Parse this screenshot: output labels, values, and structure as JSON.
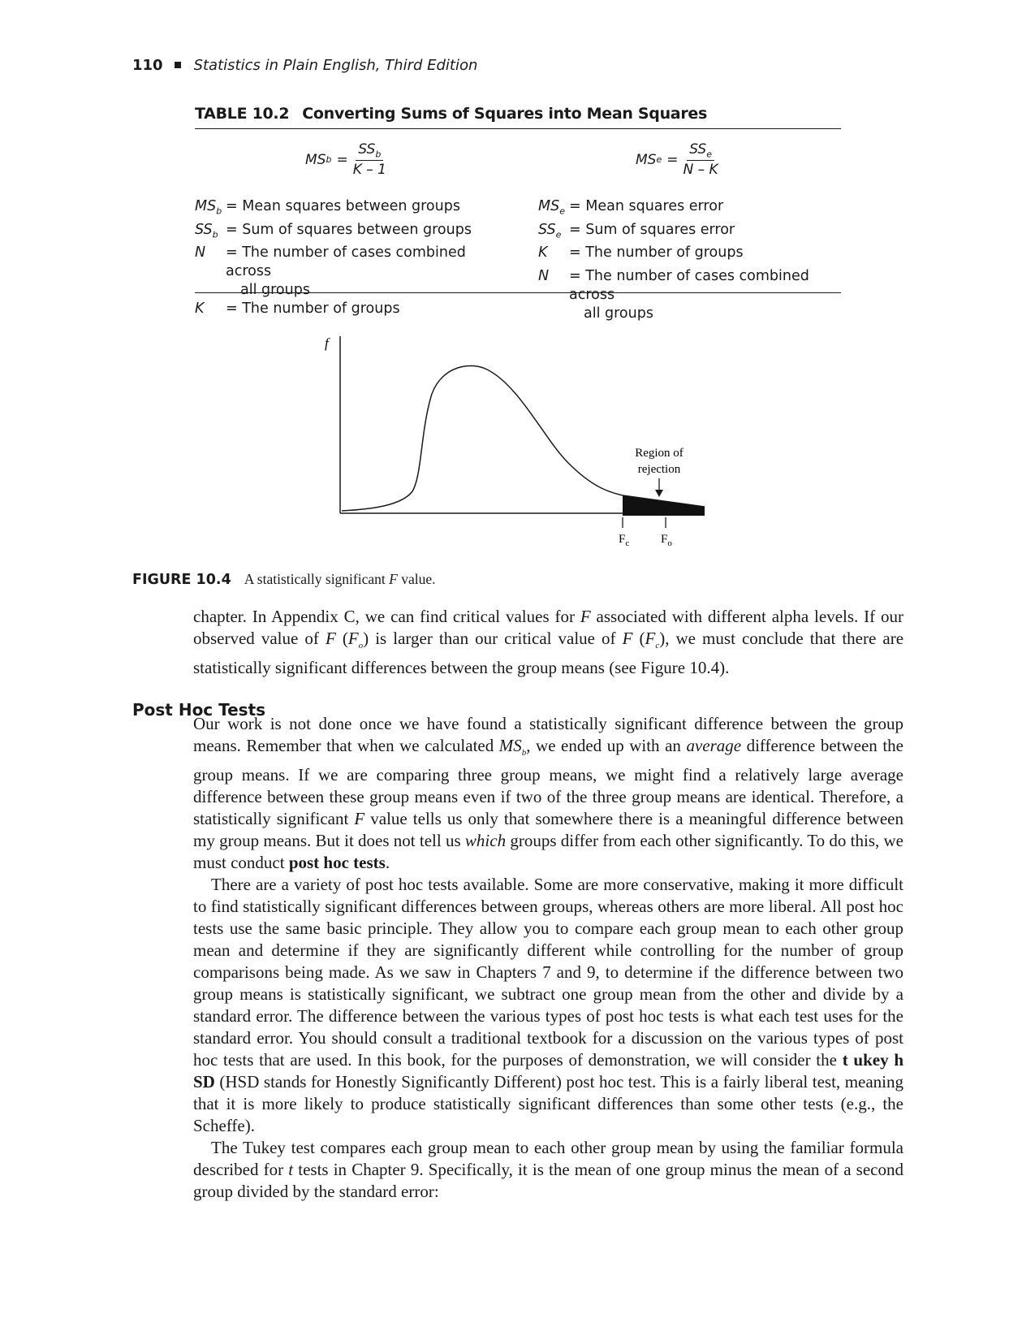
{
  "header": {
    "page_number": "110",
    "book_title": "Statistics in Plain English, Third Edition"
  },
  "table": {
    "label": "TABLE 10.2",
    "title": "Converting Sums of Squares into Mean Squares",
    "formula_left": {
      "lhs": "MS",
      "lhs_sub": "b",
      "eq": "=",
      "num": "SS",
      "num_sub": "b",
      "den": "K – 1"
    },
    "formula_right": {
      "lhs": "MS",
      "lhs_sub": "e",
      "eq": "=",
      "num": "SS",
      "num_sub": "e",
      "den": "N – K"
    },
    "defs_left": [
      {
        "sym": "MS",
        "sub": "b",
        "text": "= Mean squares between groups"
      },
      {
        "sym": "SS",
        "sub": "b",
        "text": "= Sum of squares between groups"
      },
      {
        "sym": "N",
        "sub": "",
        "text": "= The number of cases combined across",
        "cont": "all groups"
      },
      {
        "sym": "K",
        "sub": "",
        "text": "= The number of groups"
      }
    ],
    "defs_right": [
      {
        "sym": "MS",
        "sub": "e",
        "text": "= Mean squares error"
      },
      {
        "sym": "SS",
        "sub": "e",
        "text": "= Sum of squares error"
      },
      {
        "sym": "K",
        "sub": "",
        "text": "= The number of groups"
      },
      {
        "sym": "N",
        "sub": "",
        "text": "= The number of cases combined across",
        "cont": "all groups"
      }
    ]
  },
  "figure": {
    "y_axis_label": "f",
    "annotation_line1": "Region of",
    "annotation_line2": "rejection",
    "fc_label": "F",
    "fc_sub": "c",
    "fo_label": "F",
    "fo_sub": "o",
    "caption_label": "FIGURE 10.4",
    "caption_pre": "A statistically significant ",
    "caption_italic": "F",
    "caption_post": " value."
  },
  "paragraph1": {
    "s1": "chapter. In Appendix C, we can find critical values for ",
    "s2": "F",
    "s3": " associated with different alpha levels. If our observed value of ",
    "s4": "F",
    "s5": " (",
    "s6": "F",
    "s7": "o",
    "s8": ") is larger than our critical value of ",
    "s9": "F",
    "s10": " (",
    "s11": "F",
    "s12": "c",
    "s13": "), we must conclude that there are statistically significant differences between the group means (see Figure 10.4)."
  },
  "section_heading": "Post Hoc Tests",
  "paragraph2": {
    "s1": "Our work is not done once we have found a statistically significant difference between the group means. Remember that when we calculated ",
    "s2": "MS",
    "s3": "b",
    "s4": ", we ended up with an ",
    "s5": "average",
    "s6": " difference between the group means. If we are comparing three group means, we might find a relatively large average difference between these group means even if two of the three group means are identical. Therefore, a statistically significant ",
    "s7": "F",
    "s8": " value tells us only that somewhere there is a meaningful difference between my group means. But it does not tell us ",
    "s9": "which",
    "s10": " groups differ from each other significantly. To do this, we must conduct ",
    "s11": "post hoc tests",
    "s12": "."
  },
  "paragraph3": {
    "s1": "There are a variety of post hoc tests available. Some are more conservative, making it more difficult to find statistically significant differences between groups, whereas others are more liberal. All post hoc tests use the same basic principle. They allow you to compare each group mean to each other group mean and determine if they are significantly different while controlling for the number of group comparisons being made. As we saw in Chapters 7 and 9, to determine if the difference between two group means is statistically significant, we subtract one group mean from the other and divide by a standard error. The difference between the various types of post hoc tests is what each test uses for the standard error. You should consult a traditional textbook for a discussion on the various types of post hoc tests that are used. In this book, for the purposes of demonstration, we will consider the ",
    "s2": "t ukey h SD",
    "s3": " (HSD stands for Honestly Significantly Different) post hoc test. This is a fairly liberal test, meaning that it is more likely to produce statistically significant differences than some other tests (e.g., the Scheffe)."
  },
  "paragraph4": {
    "s1": "The Tukey test compares each group mean to each other group mean by using the familiar formula described for ",
    "s2": "t",
    "s3": " tests in Chapter 9. Specifically, it is the mean of one group minus the mean of a second group divided by the standard error:"
  }
}
